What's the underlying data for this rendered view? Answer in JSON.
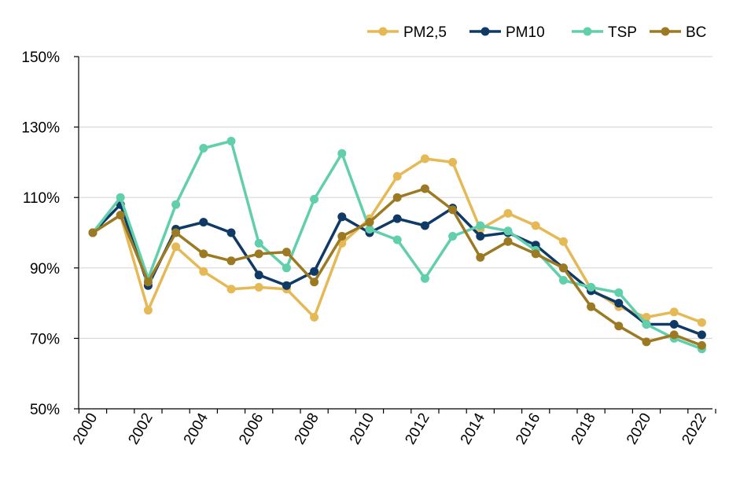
{
  "chart_data": {
    "type": "line",
    "x": [
      2000,
      2001,
      2002,
      2003,
      2004,
      2005,
      2006,
      2007,
      2008,
      2009,
      2010,
      2011,
      2012,
      2013,
      2014,
      2015,
      2016,
      2017,
      2018,
      2019,
      2020,
      2021,
      2022
    ],
    "x_tick_labels": [
      "2000",
      "2002",
      "2004",
      "2006",
      "2008",
      "2010",
      "2012",
      "2014",
      "2016",
      "2018",
      "2020",
      "2022"
    ],
    "y_tick_labels": [
      "50%",
      "70%",
      "90%",
      "110%",
      "130%",
      "150%"
    ],
    "ylim": [
      50,
      150
    ],
    "y_unit": "%",
    "grid": "horizontal",
    "legend_position": "top-right",
    "series": [
      {
        "name": "PM2,5",
        "color": "#E6B957",
        "values": [
          100,
          105,
          78,
          96,
          89,
          84,
          84.5,
          84,
          76,
          97,
          104,
          116,
          121,
          120,
          101,
          105.5,
          102,
          97.5,
          84,
          79,
          76,
          77.5,
          74.5
        ]
      },
      {
        "name": "PM10",
        "color": "#0F3A66",
        "values": [
          100,
          108,
          85,
          101,
          103,
          100,
          88,
          85,
          89,
          104.5,
          100,
          104,
          102,
          107,
          99,
          100,
          96.5,
          90,
          83.5,
          80,
          74,
          74,
          71
        ]
      },
      {
        "name": "TSP",
        "color": "#62CFAC",
        "values": [
          100,
          110,
          87,
          108,
          124,
          126,
          97,
          90,
          109.5,
          122.5,
          101,
          98,
          87,
          99,
          102,
          100.5,
          95,
          86.5,
          84.5,
          83,
          74,
          70,
          67
        ]
      },
      {
        "name": "BC",
        "color": "#9C7A24",
        "values": [
          100,
          105,
          86,
          100,
          94,
          92,
          94,
          94.5,
          86,
          99,
          103,
          110,
          112.5,
          106.5,
          93,
          97.5,
          94,
          90,
          79,
          73.5,
          69,
          71,
          68
        ]
      }
    ]
  }
}
